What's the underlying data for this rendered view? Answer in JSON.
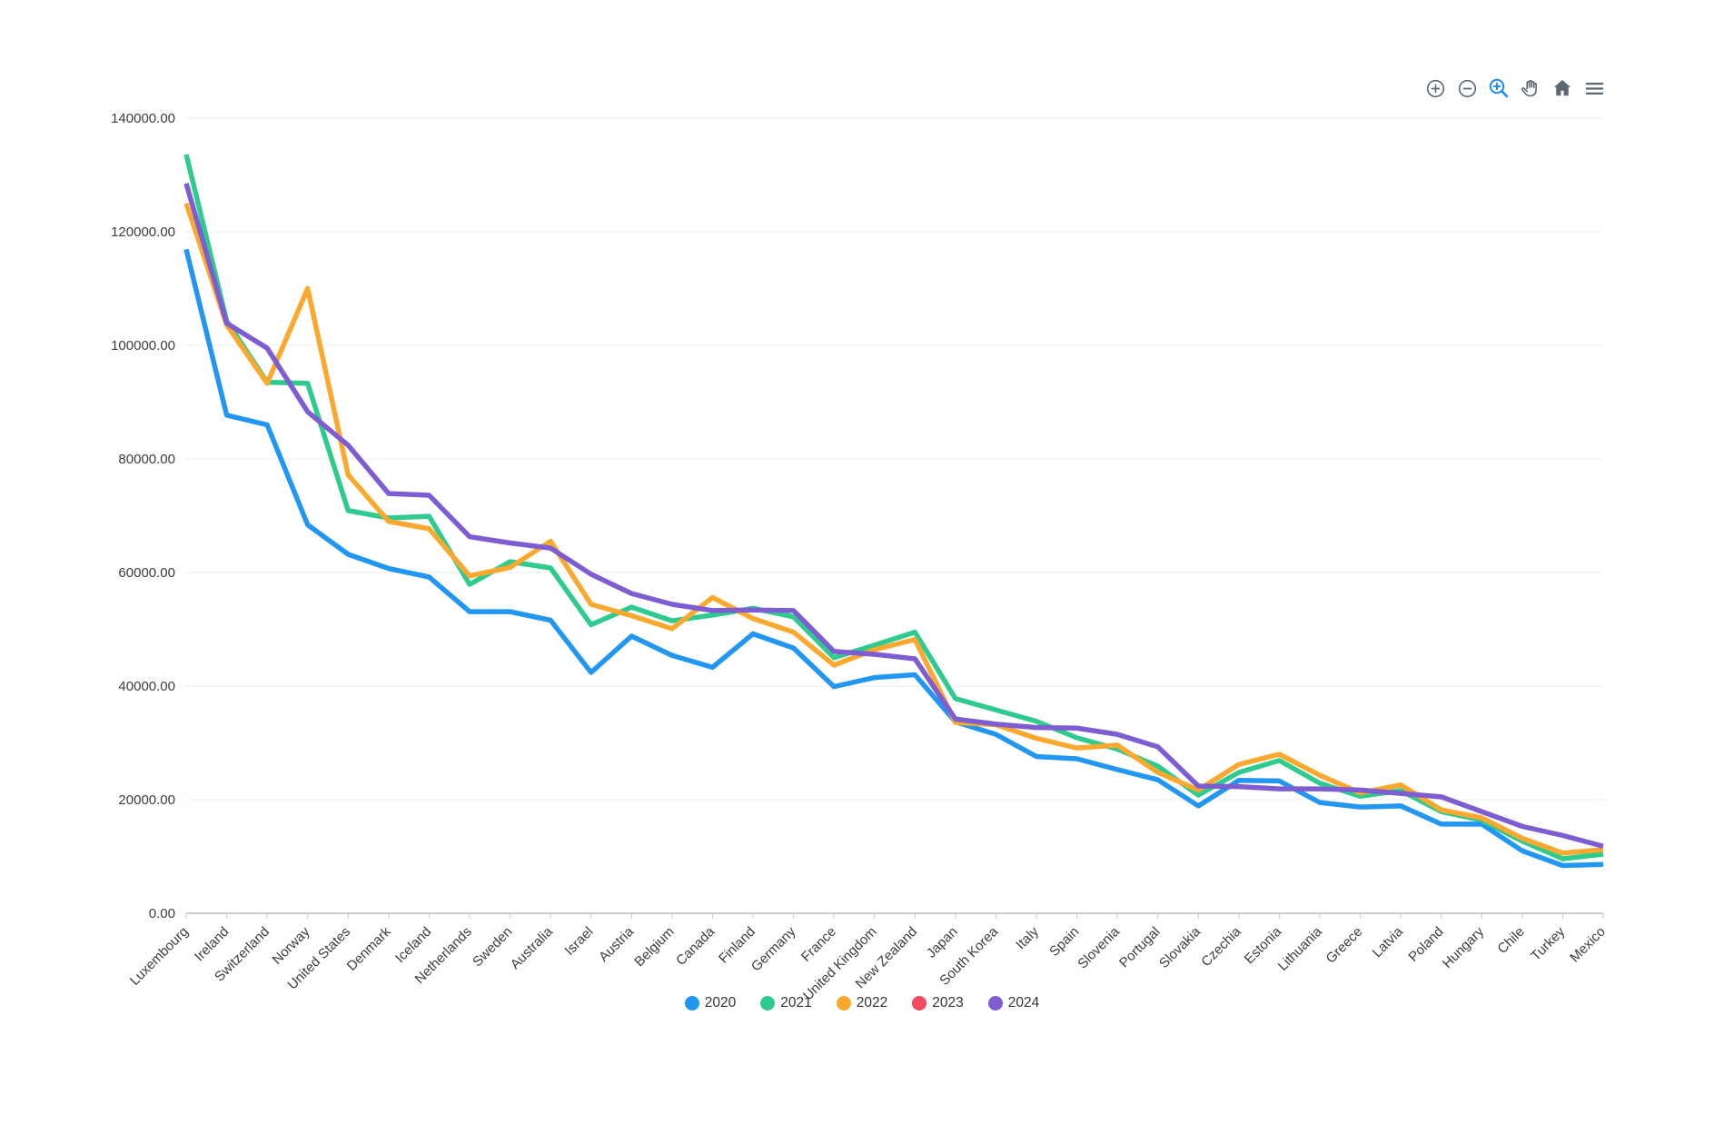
{
  "toolbar": {
    "active_tool": "box-zoom",
    "icon_color": "#5d6773",
    "active_color": "#1d8bf1",
    "icons": [
      "zoom-in-icon",
      "zoom-out-icon",
      "box-zoom-icon",
      "pan-icon",
      "home-icon",
      "menu-icon"
    ]
  },
  "chart_data": {
    "type": "line",
    "title": "",
    "xlabel": "",
    "ylabel": "",
    "grid": "horizontal",
    "legend_position": "bottom",
    "x_categories": [
      "Luxembourg",
      "Ireland",
      "Switzerland",
      "Norway",
      "United States",
      "Denmark",
      "Iceland",
      "Netherlands",
      "Sweden",
      "Australia",
      "Israel",
      "Austria",
      "Belgium",
      "Canada",
      "Finland",
      "Germany",
      "France",
      "United Kingdom",
      "New Zealand",
      "Japan",
      "South Korea",
      "Italy",
      "Spain",
      "Slovenia",
      "Portugal",
      "Slovakia",
      "Czechia",
      "Estonia",
      "Lithuania",
      "Greece",
      "Latvia",
      "Poland",
      "Hungary",
      "Chile",
      "Turkey",
      "Mexico"
    ],
    "y_axis": {
      "min": 0,
      "max": 140000,
      "step": 20000,
      "tick_labels": [
        "0.00",
        "20000.00",
        "40000.00",
        "60000.00",
        "80000.00",
        "100000.00",
        "120000.00",
        "140000.00"
      ]
    },
    "series": [
      {
        "name": "2020",
        "color": "#2196F3",
        "visible": true,
        "values": [
          116900,
          87700,
          86000,
          68400,
          63200,
          60700,
          59200,
          53100,
          53100,
          51600,
          42400,
          48800,
          45400,
          43300,
          49200,
          46700,
          39900,
          41500,
          42000,
          33700,
          31500,
          27600,
          27200,
          25300,
          23500,
          18900,
          23400,
          23300,
          19500,
          18700,
          18900,
          15700,
          15700,
          11000,
          8400,
          8600
        ]
      },
      {
        "name": "2021",
        "color": "#2FCB8E",
        "visible": true,
        "values": [
          133600,
          104300,
          93500,
          93300,
          70900,
          69600,
          69900,
          57900,
          61900,
          60800,
          50800,
          53900,
          51500,
          52500,
          53700,
          52200,
          45000,
          47200,
          49500,
          37800,
          35800,
          33800,
          30900,
          28900,
          25900,
          20800,
          24800,
          26900,
          22900,
          20600,
          21600,
          17900,
          16400,
          12700,
          9600,
          10400
        ]
      },
      {
        "name": "2022",
        "color": "#FBA82F",
        "visible": true,
        "values": [
          125000,
          103600,
          93300,
          110000,
          77200,
          69000,
          67700,
          59400,
          60900,
          65500,
          54400,
          52400,
          50100,
          55600,
          51900,
          49500,
          43700,
          46400,
          48200,
          33600,
          33200,
          30800,
          29100,
          29600,
          24800,
          21700,
          26200,
          28000,
          24300,
          21200,
          22600,
          18200,
          16800,
          13200,
          10600,
          11200
        ]
      },
      {
        "name": "2023",
        "color": "#F5495F",
        "visible": false,
        "values": []
      },
      {
        "name": "2024",
        "color": "#7E5CD1",
        "visible": true,
        "values": [
          128500,
          103900,
          99500,
          88300,
          82400,
          73900,
          73600,
          66300,
          65200,
          64300,
          59700,
          56300,
          54400,
          53300,
          53400,
          53300,
          46100,
          45600,
          44800,
          34200,
          33300,
          32700,
          32600,
          31500,
          29300,
          22400,
          22300,
          21900,
          21900,
          21700,
          21100,
          20500,
          17900,
          15300,
          13700,
          11800
        ]
      }
    ]
  }
}
